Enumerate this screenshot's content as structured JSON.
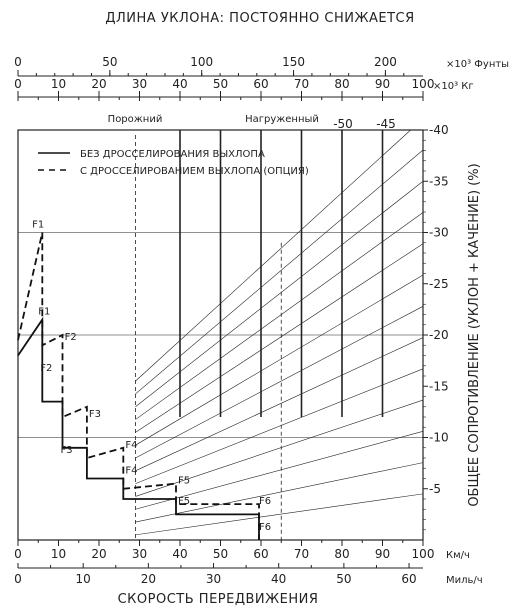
{
  "chart_data": {
    "type": "line",
    "title": "ДЛИНА УКЛОНА: ПОСТОЯННО СНИЖАЕТСЯ",
    "xlabel": "СКОРОСТЬ ПЕРЕДВИЖЕНИЯ",
    "ylabel": "ОБЩЕЕ СОПРОТИВЛЕНИЕ (УКЛОН + КАЧЕНИЕ) (%)",
    "x_kmh": {
      "unit": "Км/ч",
      "range": [
        0,
        100
      ],
      "ticks": [
        "0",
        "10",
        "20",
        "30",
        "40",
        "50",
        "60",
        "70",
        "80",
        "90",
        "100"
      ]
    },
    "x_mph": {
      "unit": "Миль/ч",
      "range": [
        0,
        62.14
      ],
      "ticks": [
        "0",
        "10",
        "20",
        "30",
        "40",
        "50",
        "60"
      ]
    },
    "y": {
      "range": [
        0,
        40
      ],
      "ticks": [
        "-5",
        "-10",
        "-15",
        "-20",
        "-25",
        "-30",
        "-35",
        "-40"
      ]
    },
    "weight_lb": {
      "unit": "×10³ Фунты",
      "range": [
        0,
        220.46
      ],
      "ticks": [
        "0",
        "50",
        "100",
        "150",
        "200"
      ]
    },
    "weight_kg": {
      "unit": "×10³ Кг",
      "range": [
        0,
        100
      ],
      "ticks": [
        "0",
        "10",
        "20",
        "30",
        "40",
        "50",
        "60",
        "70",
        "80",
        "90",
        "100"
      ]
    },
    "weight_labels": {
      "empty": "Порожний",
      "loaded": "Нагруженный",
      "line_minus50": "-50",
      "line_minus45": "-45"
    },
    "grid": true,
    "legend_position": "top-left",
    "legend": [
      {
        "name": "БЕЗ ДРОССЕЛИРОВАНИЯ ВЫХЛОПА",
        "style": "solid"
      },
      {
        "name": "С ДРОССЕЛИРОВАНИЕМ ВЫХЛОПА (ОПЦИЯ)",
        "style": "dashed"
      }
    ],
    "series": [
      {
        "name": "БЕЗ ДРОССЕЛИРОВАНИЯ ВЫХЛОПА",
        "style": "solid",
        "points": [
          [
            0,
            18
          ],
          [
            6,
            21.5
          ],
          [
            6,
            13.5
          ],
          [
            11,
            13.5
          ],
          [
            11,
            9
          ],
          [
            17,
            9
          ],
          [
            17,
            6
          ],
          [
            26,
            6
          ],
          [
            26,
            4
          ],
          [
            39,
            4
          ],
          [
            39,
            2.5
          ],
          [
            59.5,
            2.5
          ],
          [
            59.5,
            0
          ]
        ]
      },
      {
        "name": "С ДРОССЕЛИРОВАНИЕМ ВЫХЛОПА (ОПЦИЯ)",
        "style": "dashed",
        "points": [
          [
            0,
            19.5
          ],
          [
            6,
            30
          ],
          [
            6,
            19
          ],
          [
            11,
            20
          ],
          [
            11,
            12
          ],
          [
            17,
            13
          ],
          [
            17,
            8
          ],
          [
            26,
            9
          ],
          [
            26,
            5
          ],
          [
            39,
            5.5
          ],
          [
            39,
            3.5
          ],
          [
            59.5,
            3.5
          ],
          [
            59.5,
            0
          ]
        ]
      }
    ],
    "gear_labels": [
      {
        "text": "F1",
        "x": 3.5,
        "y": 30.5
      },
      {
        "text": "F1",
        "x": 5,
        "y": 22
      },
      {
        "text": "F2",
        "x": 11.5,
        "y": 19.5
      },
      {
        "text": "F2",
        "x": 5.5,
        "y": 16.5
      },
      {
        "text": "F3",
        "x": 17.5,
        "y": 12
      },
      {
        "text": "F3",
        "x": 10.5,
        "y": 8.5
      },
      {
        "text": "F4",
        "x": 26.5,
        "y": 9
      },
      {
        "text": "F4",
        "x": 26.5,
        "y": 6.5
      },
      {
        "text": "F5",
        "x": 39.5,
        "y": 5.5
      },
      {
        "text": "F5",
        "x": 39.5,
        "y": 3.5
      },
      {
        "text": "F6",
        "x": 59.5,
        "y": 3.5
      },
      {
        "text": "F6",
        "x": 59.5,
        "y": 1
      }
    ],
    "empty_weight_kg": 29,
    "loaded_weight_kg": 65,
    "diagonal_lines_count": 13
  }
}
